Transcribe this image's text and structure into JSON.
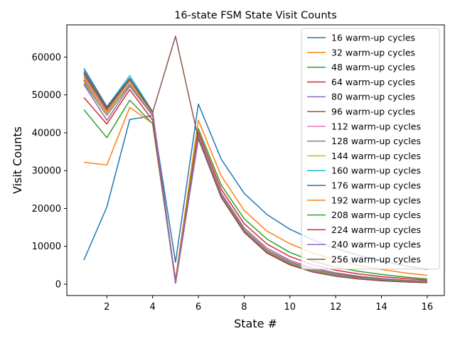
{
  "chart_data": {
    "type": "line",
    "title": "16-state FSM State Visit Counts",
    "xlabel": "State #",
    "ylabel": "Visit Counts",
    "x": [
      1,
      2,
      3,
      4,
      5,
      6,
      7,
      8,
      9,
      10,
      11,
      12,
      13,
      14,
      15,
      16
    ],
    "xlim": [
      0.25,
      16.75
    ],
    "ylim": [
      -3000,
      68500
    ],
    "xticks": [
      2,
      4,
      6,
      8,
      10,
      12,
      14,
      16
    ],
    "yticks": [
      0,
      10000,
      20000,
      30000,
      40000,
      50000,
      60000
    ],
    "grid": false,
    "legend_position": "top-right",
    "series": [
      {
        "name": "16 warm-up cycles",
        "color": "#1f77b4",
        "values": [
          6400,
          20400,
          43500,
          44500,
          5800,
          47600,
          33000,
          24000,
          18400,
          14500,
          11700,
          9500,
          7600,
          6100,
          4900,
          3900
        ]
      },
      {
        "name": "32 warm-up cycles",
        "color": "#ff7f0e",
        "values": [
          32200,
          31500,
          46700,
          42500,
          1400,
          43300,
          28600,
          19500,
          14000,
          10700,
          8200,
          6400,
          5000,
          3900,
          3000,
          2300
        ]
      },
      {
        "name": "48 warm-up cycles",
        "color": "#2ca02c",
        "values": [
          46100,
          38700,
          48600,
          42400,
          600,
          41100,
          26200,
          17300,
          11900,
          8400,
          6100,
          4500,
          3400,
          2600,
          1900,
          1400
        ]
      },
      {
        "name": "64 warm-up cycles",
        "color": "#d62728",
        "values": [
          49300,
          42300,
          51400,
          43300,
          400,
          40200,
          25100,
          16000,
          10600,
          7300,
          5100,
          3700,
          2700,
          2000,
          1500,
          1100
        ]
      },
      {
        "name": "80 warm-up cycles",
        "color": "#9467bd",
        "values": [
          52700,
          43300,
          52300,
          44500,
          300,
          39400,
          24100,
          14900,
          9500,
          6300,
          4300,
          3000,
          2100,
          1500,
          1100,
          800
        ]
      },
      {
        "name": "96 warm-up cycles",
        "color": "#8c564b",
        "values": [
          54000,
          44700,
          52900,
          45000,
          300,
          39000,
          23600,
          14400,
          9000,
          5900,
          3900,
          2700,
          1900,
          1300,
          900,
          700
        ]
      },
      {
        "name": "112 warm-up cycles",
        "color": "#e377c2",
        "values": [
          54600,
          45300,
          53300,
          45200,
          300,
          38900,
          23400,
          14200,
          8800,
          5700,
          3700,
          2500,
          1700,
          1200,
          800,
          600
        ]
      },
      {
        "name": "128 warm-up cycles",
        "color": "#7f7f7f",
        "values": [
          53100,
          44600,
          52700,
          45000,
          300,
          38900,
          23400,
          14200,
          8700,
          5600,
          3700,
          2400,
          1700,
          1200,
          800,
          600
        ]
      },
      {
        "name": "144 warm-up cycles",
        "color": "#bcbd22",
        "values": [
          53600,
          44900,
          53000,
          45100,
          300,
          38800,
          23300,
          14100,
          8600,
          5500,
          3600,
          2400,
          1600,
          1100,
          800,
          500
        ]
      },
      {
        "name": "160 warm-up cycles",
        "color": "#17becf",
        "values": [
          56400,
          46800,
          55100,
          45600,
          300,
          38700,
          23200,
          14000,
          8500,
          5400,
          3500,
          2300,
          1600,
          1100,
          700,
          500
        ]
      },
      {
        "name": "176 warm-up cycles",
        "color": "#1f77b4",
        "values": [
          57000,
          46900,
          54400,
          45500,
          300,
          38600,
          23100,
          13900,
          8400,
          5300,
          3400,
          2200,
          1500,
          1000,
          700,
          500
        ]
      },
      {
        "name": "192 warm-up cycles",
        "color": "#ff7f0e",
        "values": [
          55100,
          45800,
          53900,
          45300,
          300,
          38600,
          23100,
          13900,
          8400,
          5300,
          3400,
          2200,
          1500,
          1000,
          700,
          500
        ]
      },
      {
        "name": "208 warm-up cycles",
        "color": "#2ca02c",
        "values": [
          55500,
          46100,
          54000,
          45300,
          300,
          38500,
          23000,
          13800,
          8300,
          5200,
          3300,
          2200,
          1400,
          1000,
          700,
          400
        ]
      },
      {
        "name": "224 warm-up cycles",
        "color": "#d62728",
        "values": [
          55800,
          46300,
          54100,
          45400,
          300,
          38500,
          23000,
          13800,
          8300,
          5200,
          3300,
          2100,
          1400,
          900,
          600,
          400
        ]
      },
      {
        "name": "240 warm-up cycles",
        "color": "#9467bd",
        "values": [
          55900,
          46400,
          54200,
          45400,
          300,
          38500,
          22900,
          13700,
          8200,
          5100,
          3300,
          2100,
          1400,
          900,
          600,
          400
        ]
      },
      {
        "name": "256 warm-up cycles",
        "color": "#8c564b",
        "values": [
          56100,
          46500,
          54200,
          45400,
          65500,
          38400,
          22900,
          13700,
          8200,
          5100,
          3200,
          2100,
          1400,
          900,
          600,
          400
        ]
      }
    ]
  }
}
